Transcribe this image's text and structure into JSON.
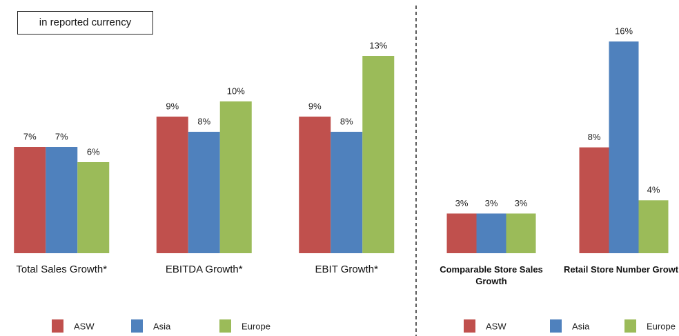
{
  "chart_data": [
    {
      "type": "bar",
      "annotation": "in reported currency",
      "categories": [
        "Total Sales Growth*",
        "EBITDA Growth*",
        "EBIT Growth*"
      ],
      "series": [
        {
          "name": "ASW",
          "color": "#c0504d",
          "values": [
            7,
            9,
            9
          ],
          "value_labels": [
            "7%",
            "9%",
            "9%"
          ]
        },
        {
          "name": "Asia",
          "color": "#4f81bd",
          "values": [
            7,
            8,
            8
          ],
          "value_labels": [
            "7%",
            "8%",
            "8%"
          ]
        },
        {
          "name": "Europe",
          "color": "#9bbb59",
          "values": [
            6,
            10,
            13
          ],
          "value_labels": [
            "6%",
            "10%",
            "13%"
          ]
        }
      ],
      "ylim": [
        0,
        14
      ]
    },
    {
      "type": "bar",
      "categories": [
        "Comparable Store Sales Growth",
        "Retail Store Number Growth"
      ],
      "series": [
        {
          "name": "ASW",
          "color": "#c0504d",
          "values": [
            3,
            8
          ],
          "value_labels": [
            "3%",
            "8%"
          ]
        },
        {
          "name": "Asia",
          "color": "#4f81bd",
          "values": [
            3,
            16
          ],
          "value_labels": [
            "3%",
            "16%"
          ]
        },
        {
          "name": "Europe",
          "color": "#9bbb59",
          "values": [
            3,
            4
          ],
          "value_labels": [
            "3%",
            "4%"
          ]
        }
      ],
      "ylim": [
        0,
        17
      ]
    }
  ]
}
